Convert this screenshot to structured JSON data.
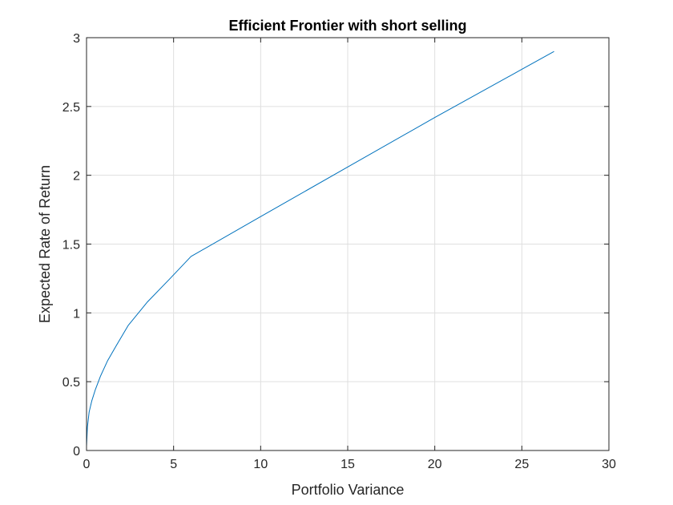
{
  "chart_data": {
    "type": "line",
    "title": "Efficient Frontier with short selling",
    "xlabel": "Portfolio Variance",
    "ylabel": "Expected Rate of Return",
    "xlim": [
      0,
      30
    ],
    "ylim": [
      0,
      3
    ],
    "xticks": [
      0,
      5,
      10,
      15,
      20,
      25,
      30
    ],
    "xtick_labels": [
      "0",
      "5",
      "10",
      "15",
      "20",
      "25",
      "30"
    ],
    "yticks": [
      0,
      0.5,
      1,
      1.5,
      2,
      2.5,
      3
    ],
    "ytick_labels": [
      "0",
      "0.5",
      "1",
      "1.5",
      "2",
      "2.5",
      "3"
    ],
    "grid": true,
    "series": [
      {
        "color": "#0072BD",
        "x": [
          0.0,
          0.05,
          0.15,
          0.3,
          0.5,
          0.8,
          1.2,
          1.7,
          2.4,
          3.5,
          4.8,
          6.0,
          10.0,
          15.0,
          20.0,
          25.0,
          26.85
        ],
        "y": [
          0.03,
          0.17,
          0.28,
          0.36,
          0.44,
          0.54,
          0.65,
          0.76,
          0.91,
          1.08,
          1.25,
          1.41,
          1.7,
          2.06,
          2.42,
          2.77,
          2.9
        ]
      }
    ]
  }
}
